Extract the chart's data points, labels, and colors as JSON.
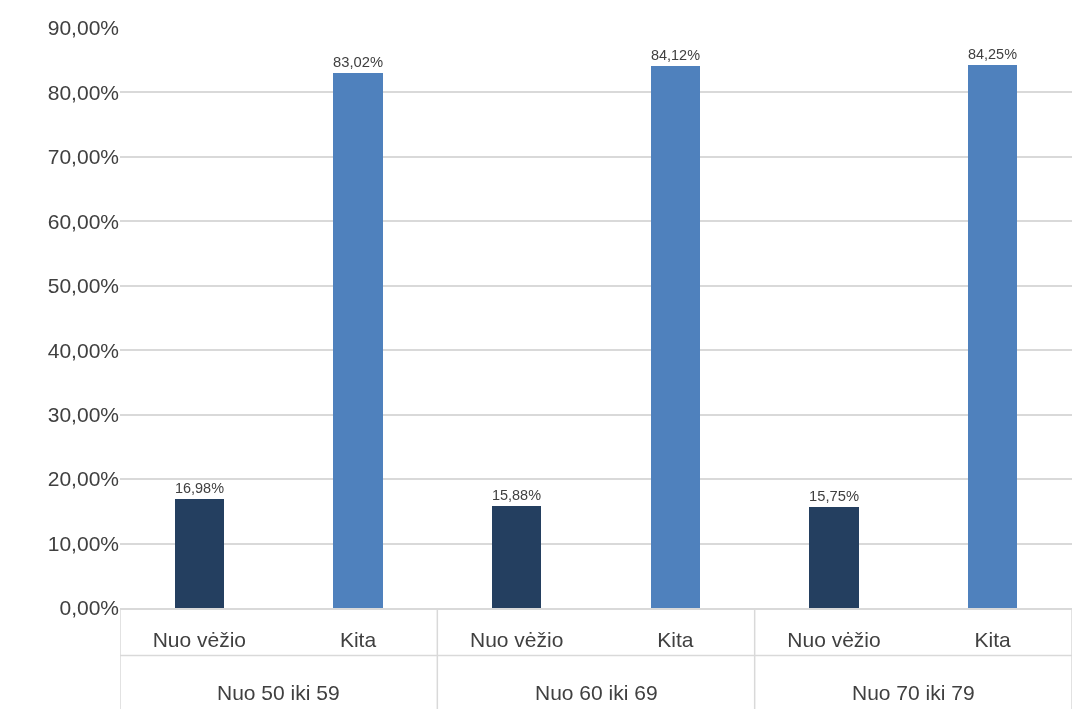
{
  "chart_data": {
    "type": "bar",
    "categories": [
      "Nuo vėžio",
      "Kita",
      "Nuo vėžio",
      "Kita",
      "Nuo vėžio",
      "Kita"
    ],
    "values": [
      16.98,
      83.02,
      15.88,
      84.12,
      15.75,
      84.25
    ],
    "colors": [
      "#243f60",
      "#4f81bd",
      "#243f60",
      "#4f81bd",
      "#243f60",
      "#4f81bd"
    ],
    "value_labels": [
      "16,98%",
      "83,02%",
      "15,88%",
      "84,12%",
      "15,75%",
      "84,25%"
    ],
    "ylim": [
      0,
      90
    ],
    "yticks": [
      {
        "value": 0,
        "label": "0,00%"
      },
      {
        "value": 10,
        "label": "10,00%"
      },
      {
        "value": 20,
        "label": "20,00%"
      },
      {
        "value": 30,
        "label": "30,00%"
      },
      {
        "value": 40,
        "label": "40,00%"
      },
      {
        "value": 50,
        "label": "50,00%"
      },
      {
        "value": 60,
        "label": "60,00%"
      },
      {
        "value": 70,
        "label": "70,00%"
      },
      {
        "value": 80,
        "label": "80,00%"
      },
      {
        "value": 90,
        "label": "90,00%"
      }
    ],
    "grid": "y",
    "legend": false,
    "annotations": [
      "Nuo 50 iki 59",
      "Nuo 60 iki 69",
      "Nuo 70 iki 79"
    ]
  }
}
